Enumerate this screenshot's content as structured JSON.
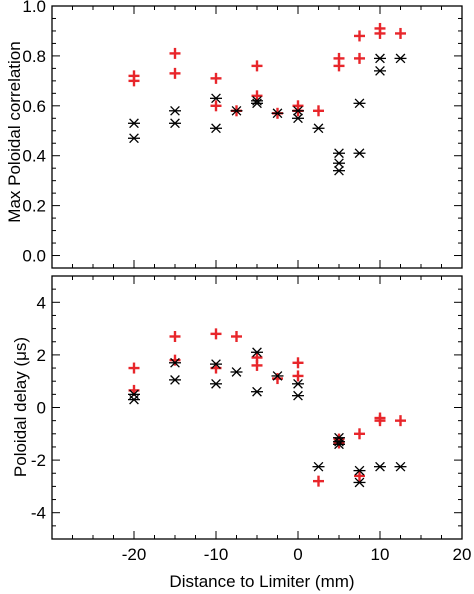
{
  "chart_data": [
    {
      "type": "scatter",
      "title": "",
      "xlabel": "",
      "ylabel": "Max Poloidal correlation",
      "xlim": [
        -30,
        20
      ],
      "ylim": [
        -0.05,
        1.0
      ],
      "xticks": [
        -20,
        -10,
        0,
        10
      ],
      "yticks": [
        0.0,
        0.2,
        0.4,
        0.6,
        0.8,
        1.0
      ],
      "ytick_labels": [
        "0.0",
        "0.2",
        "0.4",
        "0.6",
        "0.8",
        "1.0"
      ],
      "grid": false,
      "series": [
        {
          "marker": "plus",
          "color": "#e8262b",
          "x": [
            -20,
            -20,
            -15,
            -15,
            -10,
            -10,
            -7.5,
            -5,
            -5,
            -2.5,
            0,
            0,
            2.5,
            5,
            5,
            7.5,
            7.5,
            10,
            10,
            12.5
          ],
          "y": [
            0.72,
            0.7,
            0.81,
            0.73,
            0.71,
            0.6,
            0.58,
            0.76,
            0.64,
            0.57,
            0.6,
            0.58,
            0.58,
            0.79,
            0.76,
            0.88,
            0.79,
            0.91,
            0.89,
            0.89
          ]
        },
        {
          "marker": "asterisk",
          "color": "#000000",
          "x": [
            -20,
            -20,
            -15,
            -15,
            -10,
            -10,
            -7.5,
            -5,
            -5,
            -2.5,
            0,
            0,
            2.5,
            5,
            5,
            5,
            7.5,
            7.5,
            10,
            10,
            12.5
          ],
          "y": [
            0.53,
            0.47,
            0.58,
            0.53,
            0.63,
            0.51,
            0.58,
            0.62,
            0.61,
            0.57,
            0.58,
            0.55,
            0.51,
            0.41,
            0.37,
            0.34,
            0.61,
            0.41,
            0.79,
            0.74,
            0.79
          ]
        }
      ]
    },
    {
      "type": "scatter",
      "title": "",
      "xlabel": "Distance to Limiter (mm)",
      "ylabel": "Poloidal delay (μs)",
      "xlim": [
        -30,
        20
      ],
      "ylim": [
        -5,
        5
      ],
      "xticks": [
        -20,
        -10,
        0,
        10,
        20
      ],
      "xtick_labels": [
        "-20",
        "-10",
        "0",
        "10",
        "20"
      ],
      "yticks": [
        -4,
        -2,
        0,
        2,
        4
      ],
      "ytick_labels": [
        "-4",
        "-2",
        "0",
        "2",
        "4"
      ],
      "grid": false,
      "series": [
        {
          "marker": "plus",
          "color": "#e8262b",
          "x": [
            -20,
            -20,
            -15,
            -15,
            -10,
            -10,
            -7.5,
            -5,
            -5,
            -2.5,
            0,
            0,
            2.5,
            5,
            5,
            7.5,
            7.5,
            10,
            10,
            12.5
          ],
          "y": [
            1.5,
            0.65,
            2.7,
            1.8,
            2.8,
            1.5,
            2.7,
            1.9,
            1.6,
            1.1,
            1.7,
            1.2,
            -2.8,
            -1.2,
            -1.35,
            -2.6,
            -1.0,
            -0.4,
            -0.5,
            -0.5
          ]
        },
        {
          "marker": "asterisk",
          "color": "#000000",
          "x": [
            -20,
            -20,
            -15,
            -15,
            -10,
            -10,
            -7.5,
            -5,
            -5,
            -2.5,
            0,
            0,
            2.5,
            5,
            5,
            5,
            7.5,
            7.5,
            10,
            12.5
          ],
          "y": [
            0.5,
            0.3,
            1.7,
            1.05,
            1.65,
            0.9,
            1.35,
            2.1,
            0.6,
            1.2,
            0.9,
            0.45,
            -2.25,
            -1.15,
            -1.3,
            -1.4,
            -2.4,
            -2.85,
            -2.25,
            -2.25
          ]
        }
      ]
    }
  ]
}
